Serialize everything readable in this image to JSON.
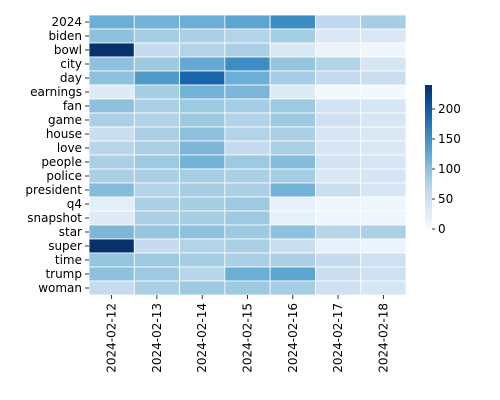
{
  "chart_data": {
    "type": "heatmap",
    "title": "",
    "xlabel": "",
    "ylabel": "",
    "x_categories": [
      "2024-02-12",
      "2024-02-13",
      "2024-02-14",
      "2024-02-15",
      "2024-02-16",
      "2024-02-17",
      "2024-02-18"
    ],
    "y_categories": [
      "2024",
      "biden",
      "bowl",
      "city",
      "day",
      "earnings",
      "fan",
      "game",
      "house",
      "love",
      "people",
      "police",
      "president",
      "q4",
      "snapshot",
      "star",
      "super",
      "time",
      "trump",
      "woman"
    ],
    "values": [
      [
        120,
        115,
        120,
        130,
        155,
        65,
        85
      ],
      [
        100,
        85,
        80,
        75,
        85,
        35,
        35
      ],
      [
        240,
        60,
        75,
        80,
        35,
        15,
        10
      ],
      [
        100,
        90,
        125,
        155,
        95,
        75,
        40
      ],
      [
        100,
        140,
        190,
        120,
        85,
        60,
        55
      ],
      [
        30,
        85,
        115,
        110,
        30,
        5,
        5
      ],
      [
        100,
        80,
        90,
        85,
        90,
        45,
        40
      ],
      [
        80,
        75,
        90,
        75,
        90,
        50,
        40
      ],
      [
        55,
        80,
        100,
        75,
        80,
        40,
        35
      ],
      [
        70,
        80,
        110,
        60,
        80,
        40,
        35
      ],
      [
        80,
        90,
        115,
        90,
        105,
        45,
        40
      ],
      [
        80,
        80,
        85,
        80,
        85,
        35,
        40
      ],
      [
        105,
        75,
        85,
        80,
        115,
        55,
        40
      ],
      [
        25,
        80,
        85,
        90,
        20,
        10,
        10
      ],
      [
        30,
        80,
        85,
        90,
        20,
        10,
        10
      ],
      [
        110,
        95,
        100,
        90,
        100,
        70,
        80
      ],
      [
        240,
        60,
        75,
        80,
        55,
        20,
        15
      ],
      [
        95,
        90,
        85,
        80,
        80,
        60,
        50
      ],
      [
        100,
        90,
        70,
        120,
        130,
        55,
        50
      ],
      [
        60,
        80,
        90,
        90,
        85,
        50,
        40
      ]
    ],
    "colorbar": {
      "min": 0,
      "max": 240,
      "ticks": [
        0,
        50,
        100,
        150,
        200
      ]
    },
    "colormap": [
      "#f7fbff",
      "#deebf7",
      "#c6dbef",
      "#9ecae1",
      "#6baed6",
      "#4292c6",
      "#2171b5",
      "#08519c",
      "#08306b"
    ],
    "grid": true,
    "legend": "colorbar-right"
  }
}
